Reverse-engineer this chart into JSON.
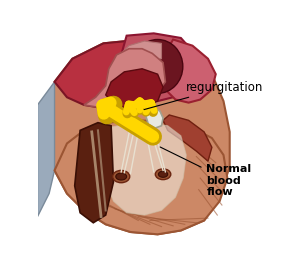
{
  "background_color": "#ffffff",
  "label_regurgitation": "regurgitation",
  "label_normal_blood_flow": "Normal\nblood\nflow",
  "arrow_color": "#FFD700",
  "arrow_edge_color": "#C8A000",
  "heart_body_color": "#CC8866",
  "heart_body_edge": "#9B5533",
  "heart_top_red": "#B83040",
  "heart_top_edge": "#7A1525",
  "aorta_outer": "#C05060",
  "aorta_inner": "#6B1520",
  "atrium_pink": "#D08080",
  "valve_white": "#E8E8E0",
  "septum_dark": "#5A2010",
  "septal_strip": "#C0A080",
  "chordae_color": "#E0D8C8",
  "papillary_color": "#9B5533",
  "right_side_blue": "#9AAABB",
  "muscle_crease": "#9B5533",
  "inner_chamber_color": "#8B1520"
}
